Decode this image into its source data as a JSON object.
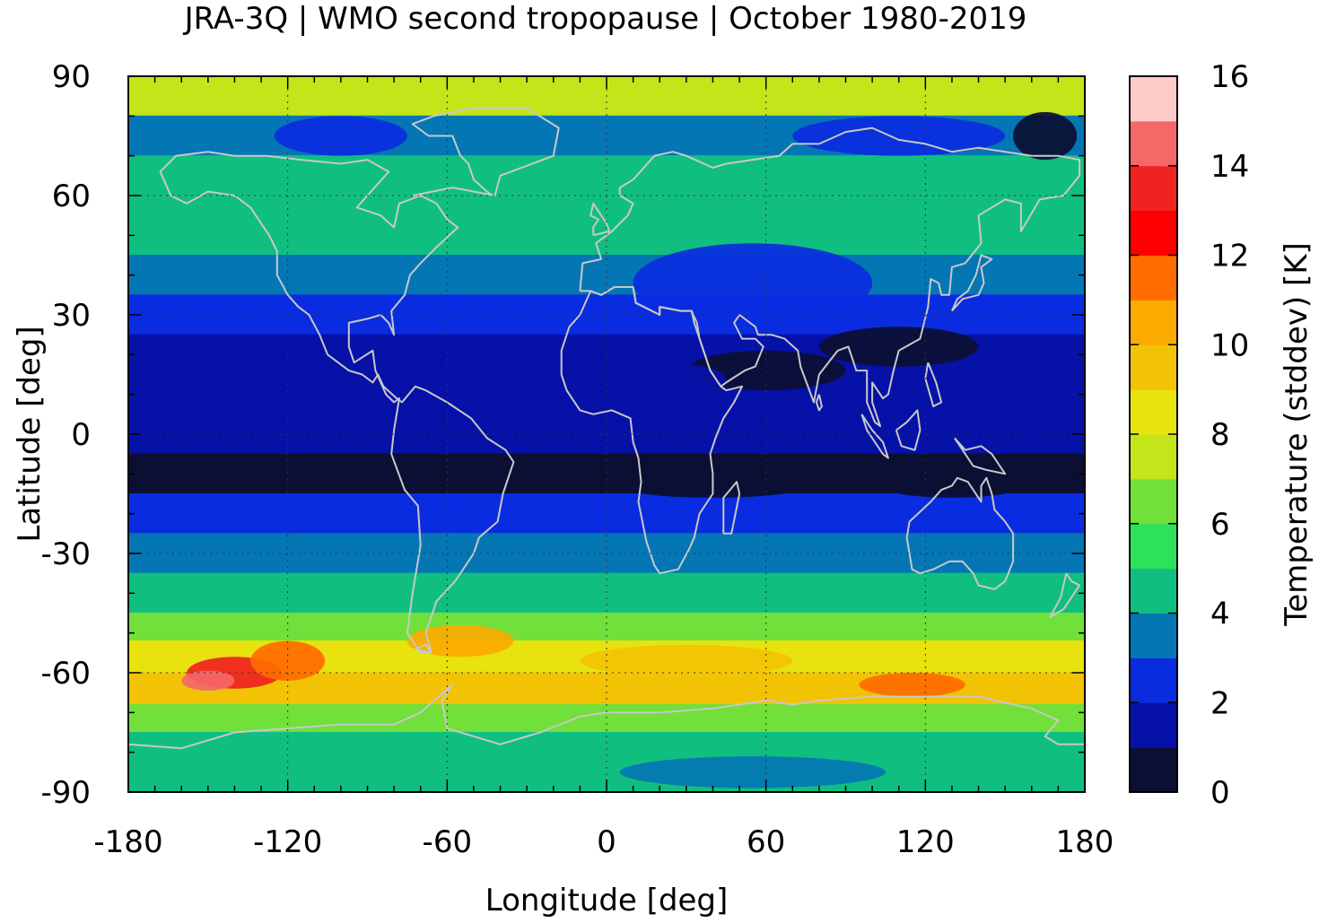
{
  "title": "JRA-3Q | WMO second tropopause | October 1980-2019",
  "chart_data": {
    "type": "heatmap",
    "projection": "equirectangular",
    "title": "JRA-3Q | WMO second tropopause | October 1980-2019",
    "xlabel": "Longitude [deg]",
    "ylabel": "Latitude [deg]",
    "xlim": [
      -180,
      180
    ],
    "ylim": [
      -90,
      90
    ],
    "xticks": [
      "-180",
      "-120",
      "-60",
      "0",
      "60",
      "120",
      "180"
    ],
    "yticks": [
      "90",
      "60",
      "30",
      "0",
      "-30",
      "-60",
      "-90"
    ],
    "grid": true,
    "colorbar": {
      "label": "Temperature (stddev) [K]",
      "min": 0,
      "max": 16,
      "ticks": [
        "0",
        "2",
        "4",
        "6",
        "8",
        "10",
        "12",
        "14",
        "16"
      ],
      "colors": [
        "#0b0f33",
        "#0611a8",
        "#0a2ce0",
        "#0476b4",
        "#10bf80",
        "#2be25a",
        "#72e03a",
        "#c3e51a",
        "#e8e20e",
        "#f2c304",
        "#fbaa00",
        "#ff6c00",
        "#ff0000",
        "#f02222",
        "#f46868",
        "#ffcaca"
      ]
    },
    "bands": [
      {
        "lat": [
          80,
          90
        ],
        "value": 7.0
      },
      {
        "lat": [
          70,
          80
        ],
        "value": 3.5
      },
      {
        "lat": [
          55,
          70
        ],
        "value": 4.6
      },
      {
        "lat": [
          45,
          55
        ],
        "value": 4.2
      },
      {
        "lat": [
          35,
          45
        ],
        "value": 3.3
      },
      {
        "lat": [
          25,
          35
        ],
        "value": 2.6
      },
      {
        "lat": [
          15,
          25
        ],
        "value": 1.8
      },
      {
        "lat": [
          5,
          15
        ],
        "value": 1.6
      },
      {
        "lat": [
          -5,
          5
        ],
        "value": 1.2
      },
      {
        "lat": [
          -15,
          -5
        ],
        "value": 0.8
      },
      {
        "lat": [
          -25,
          -15
        ],
        "value": 2.2
      },
      {
        "lat": [
          -35,
          -25
        ],
        "value": 3.4
      },
      {
        "lat": [
          -45,
          -35
        ],
        "value": 4.4
      },
      {
        "lat": [
          -52,
          -45
        ],
        "value": 6.6
      },
      {
        "lat": [
          -60,
          -52
        ],
        "value": 8.3
      },
      {
        "lat": [
          -68,
          -60
        ],
        "value": 9.0
      },
      {
        "lat": [
          -75,
          -68
        ],
        "value": 6.2
      },
      {
        "lat": [
          -82,
          -75
        ],
        "value": 4.6
      },
      {
        "lat": [
          -90,
          -82
        ],
        "value": 4.4
      }
    ],
    "blobs": [
      {
        "lon": -140,
        "lat": -60,
        "rlon": 18,
        "rlat": 4,
        "value": 13.5
      },
      {
        "lon": -150,
        "lat": -62,
        "rlon": 10,
        "rlat": 2.5,
        "value": 14.6
      },
      {
        "lon": -120,
        "lat": -57,
        "rlon": 14,
        "rlat": 5,
        "value": 11.0
      },
      {
        "lon": -55,
        "lat": -52,
        "rlon": 20,
        "rlat": 4,
        "value": 10.2
      },
      {
        "lon": 30,
        "lat": -57,
        "rlon": 40,
        "rlat": 4,
        "value": 9.6
      },
      {
        "lon": 115,
        "lat": -63,
        "rlon": 20,
        "rlat": 3,
        "value": 11.2
      },
      {
        "lon": 60,
        "lat": 16,
        "rlon": 30,
        "rlat": 5,
        "value": 0.4
      },
      {
        "lon": 110,
        "lat": 22,
        "rlon": 30,
        "rlat": 5,
        "value": 0.4
      },
      {
        "lon": -120,
        "lat": 14,
        "rlon": 20,
        "rlat": 4,
        "value": 1.2
      },
      {
        "lon": 20,
        "lat": 14,
        "rlon": 25,
        "rlat": 4,
        "value": 1.2
      },
      {
        "lon": -105,
        "lat": -10,
        "rlon": 40,
        "rlat": 4,
        "value": 0.3
      },
      {
        "lon": 40,
        "lat": -12,
        "rlon": 40,
        "rlat": 4,
        "value": 0.4
      },
      {
        "lon": 130,
        "lat": -12,
        "rlon": 30,
        "rlat": 4,
        "value": 0.3
      },
      {
        "lon": 165,
        "lat": 75,
        "rlon": 12,
        "rlat": 6,
        "value": 0.6
      },
      {
        "lon": -100,
        "lat": 75,
        "rlon": 25,
        "rlat": 5,
        "value": 2.4
      },
      {
        "lon": 110,
        "lat": 75,
        "rlon": 40,
        "rlat": 5,
        "value": 2.6
      },
      {
        "lon": 55,
        "lat": -85,
        "rlon": 50,
        "rlat": 4,
        "value": 3.6
      },
      {
        "lon": 55,
        "lat": 38,
        "rlon": 45,
        "rlat": 10,
        "value": 2.7
      }
    ]
  }
}
